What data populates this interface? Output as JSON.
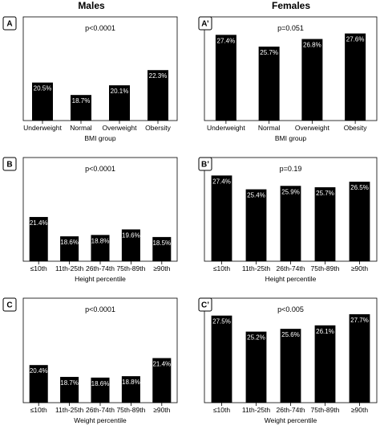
{
  "headers": {
    "males": "Males",
    "females": "Females"
  },
  "chart_data": [
    {
      "type": "bar",
      "panel_label": "A",
      "pvalue": "p<0.0001",
      "categories": [
        "Underweight",
        "Normal",
        "Overweight",
        "Obersity"
      ],
      "values": [
        20.5,
        18.7,
        20.1,
        22.3
      ],
      "data_labels": [
        "20.5%",
        "18.7%",
        "20.1%",
        "22.3%"
      ],
      "xlabel": "BMI group",
      "ylim": [
        15,
        30
      ]
    },
    {
      "type": "bar",
      "panel_label": "A’",
      "pvalue": "p=0.051",
      "categories": [
        "Underweight",
        "Normal",
        "Overweight",
        "Obesity"
      ],
      "values": [
        27.4,
        25.7,
        26.8,
        27.6
      ],
      "data_labels": [
        "27.4%",
        "25.7%",
        "26.8%",
        "27.6%"
      ],
      "xlabel": "BMI group",
      "ylim": [
        15,
        30
      ]
    },
    {
      "type": "bar",
      "panel_label": "B",
      "pvalue": "p<0.0001",
      "categories": [
        "≤10th",
        "11th-25th",
        "26th-74th",
        "75th-89th",
        "≥90th"
      ],
      "values": [
        21.4,
        18.6,
        18.8,
        19.6,
        18.5
      ],
      "data_labels": [
        "21.4%",
        "18.6%",
        "18.8%",
        "19.6%",
        "18.5%"
      ],
      "xlabel": "Height percentile",
      "ylim": [
        15,
        30
      ]
    },
    {
      "type": "bar",
      "panel_label": "B’",
      "pvalue": "p=0.19",
      "categories": [
        "≤10th",
        "11th-25th",
        "26th-74th",
        "75th-89th",
        "≥90th"
      ],
      "values": [
        27.4,
        25.4,
        25.9,
        25.7,
        26.5
      ],
      "data_labels": [
        "27.4%",
        "25.4%",
        "25.9%",
        "25.7%",
        "26.5%"
      ],
      "xlabel": "Height percentile",
      "ylim": [
        15,
        30
      ]
    },
    {
      "type": "bar",
      "panel_label": "C",
      "pvalue": "p<0.0001",
      "categories": [
        "≤10th",
        "11th-25th",
        "26th-74th",
        "75th-89th",
        "≥90th"
      ],
      "values": [
        20.4,
        18.7,
        18.6,
        18.8,
        21.4
      ],
      "data_labels": [
        "20.4%",
        "18.7%",
        "18.6%",
        "18.8%",
        "21.4%"
      ],
      "xlabel": "Weight percentile",
      "ylim": [
        15,
        30
      ]
    },
    {
      "type": "bar",
      "panel_label": "C’",
      "pvalue": "p<0.005",
      "categories": [
        "≤10th",
        "11th-25th",
        "26th-74th",
        "75th-89th",
        "≥90th"
      ],
      "values": [
        27.5,
        25.2,
        25.6,
        26.1,
        27.7
      ],
      "data_labels": [
        "27.5%",
        "25.2%",
        "25.6%",
        "26.1%",
        "27.7%"
      ],
      "xlabel": "Weight percentile",
      "ylim": [
        15,
        30
      ]
    }
  ]
}
